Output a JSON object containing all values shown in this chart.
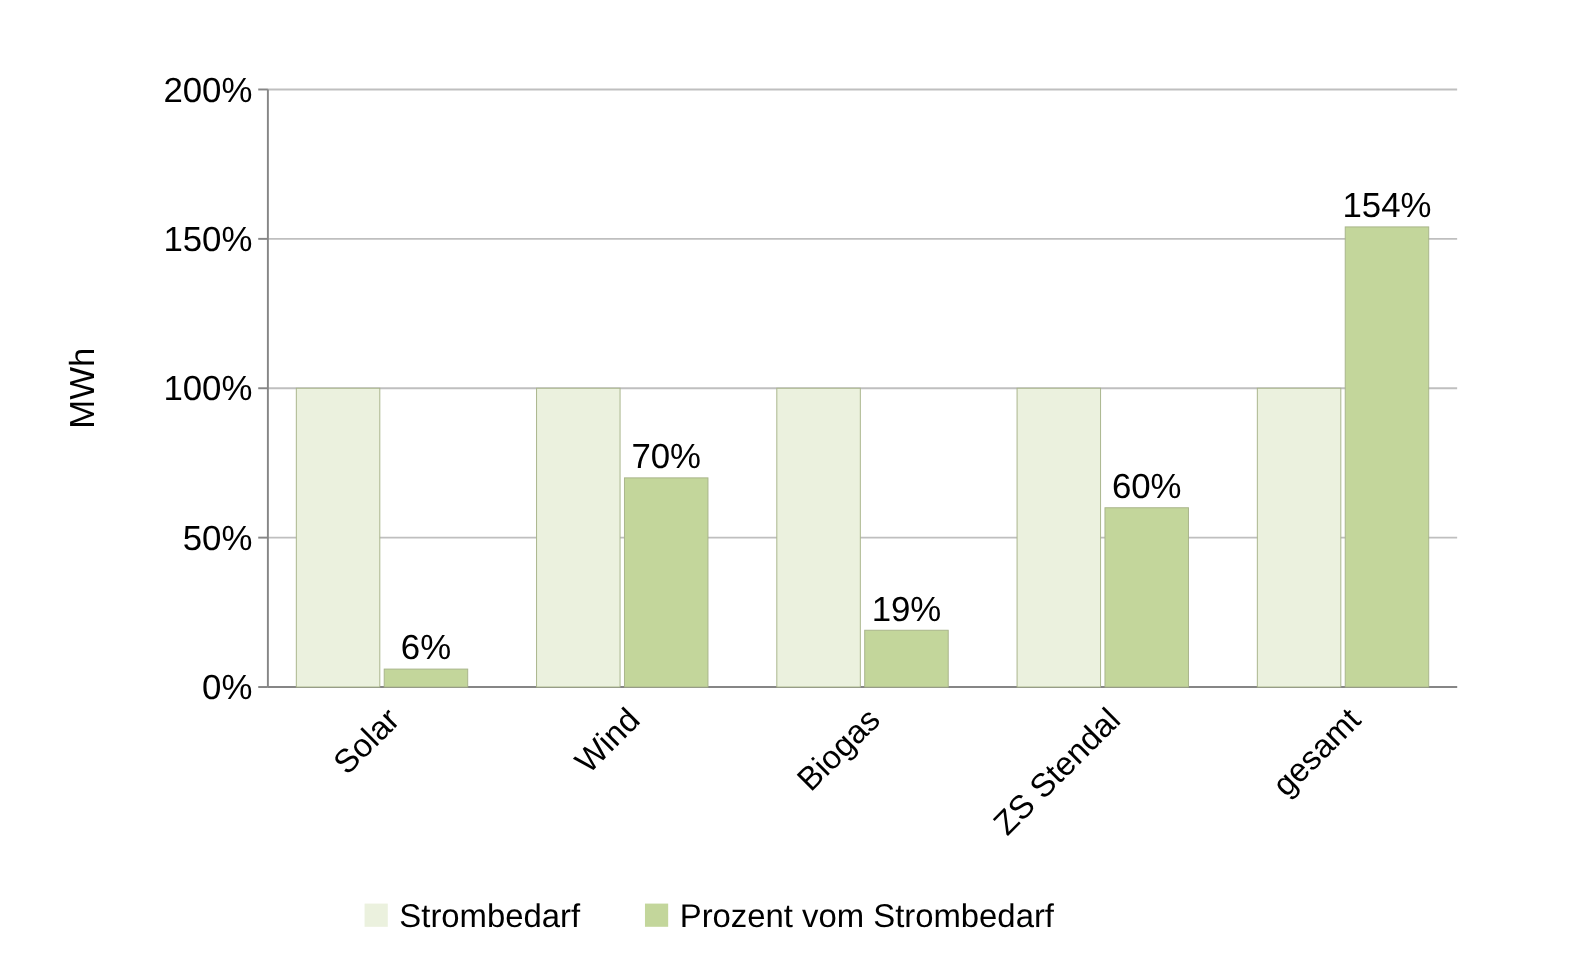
{
  "chart_data": {
    "type": "bar",
    "ylabel": "MWh",
    "categories": [
      "Solar",
      "Wind",
      "Biogas",
      "ZS Stendal",
      "gesamt"
    ],
    "series": [
      {
        "name": "Strombedarf",
        "color": "#ebf1de",
        "values": [
          100,
          100,
          100,
          100,
          100
        ]
      },
      {
        "name": "Prozent vom Strombedarf",
        "color": "#c3d69b",
        "values": [
          6,
          70,
          19,
          60,
          154
        ],
        "value_labels": [
          "6%",
          "70%",
          "19%",
          "60%",
          "154%"
        ]
      }
    ],
    "ylim": [
      0,
      200
    ],
    "yticks": [
      {
        "value": 0,
        "label": "0%"
      },
      {
        "value": 50,
        "label": "50%"
      },
      {
        "value": 100,
        "label": "100%"
      },
      {
        "value": 150,
        "label": "150%"
      },
      {
        "value": 200,
        "label": "200%"
      }
    ],
    "grid": "y",
    "legend": "bottom"
  }
}
